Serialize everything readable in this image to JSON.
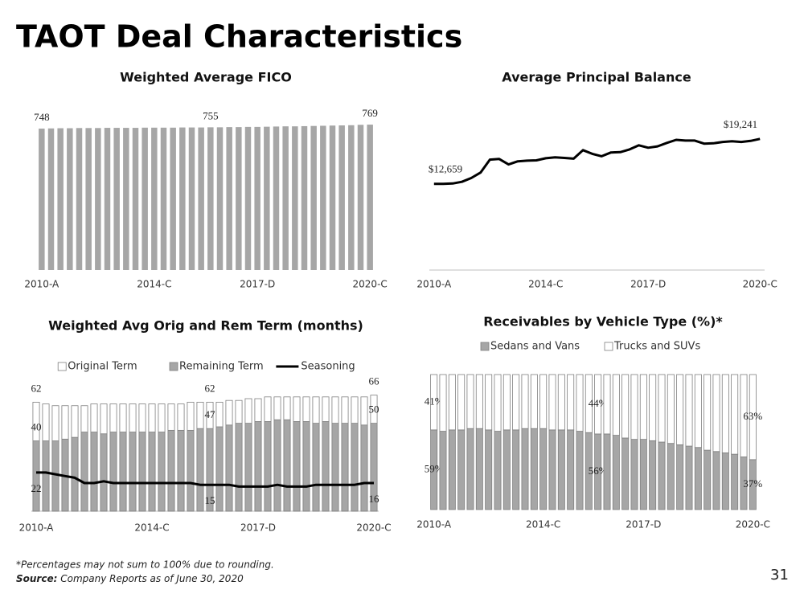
{
  "title": "TAOT Deal Characteristics",
  "chart_data": [
    {
      "type": "bar",
      "title": "Weighted Average FICO",
      "categories": [
        "2010-A",
        null,
        null,
        null,
        null,
        null,
        null,
        null,
        null,
        null,
        null,
        null,
        "2014-C",
        null,
        null,
        null,
        null,
        null,
        null,
        null,
        null,
        null,
        null,
        "2017-D",
        null,
        null,
        null,
        null,
        null,
        null,
        null,
        null,
        null,
        null,
        null,
        "2020-C"
      ],
      "values": [
        748,
        749,
        750,
        750,
        751,
        751,
        751,
        752,
        752,
        752,
        752,
        753,
        753,
        753,
        753,
        754,
        754,
        754,
        755,
        755,
        756,
        756,
        757,
        757,
        758,
        759,
        760,
        760,
        761,
        762,
        763,
        764,
        765,
        766,
        768,
        769
      ],
      "labeled": [
        0,
        18,
        35
      ],
      "color": "#a6a6a6",
      "ylim": [
        0,
        850
      ]
    },
    {
      "type": "line",
      "title": "Average Principal Balance",
      "categories": [
        "2010-A",
        null,
        null,
        null,
        null,
        null,
        null,
        null,
        null,
        null,
        null,
        null,
        "2014-C",
        null,
        null,
        null,
        null,
        null,
        null,
        null,
        null,
        null,
        null,
        "2017-D",
        null,
        null,
        null,
        null,
        null,
        null,
        null,
        null,
        null,
        null,
        null,
        "2020-C"
      ],
      "values": [
        12659,
        12650,
        12700,
        12950,
        13500,
        14300,
        16200,
        16300,
        15500,
        15950,
        16050,
        16100,
        16400,
        16550,
        16450,
        16350,
        17600,
        17050,
        16700,
        17250,
        17300,
        17700,
        18300,
        17950,
        18150,
        18650,
        19100,
        19000,
        19000,
        18550,
        18600,
        18800,
        18900,
        18800,
        18950,
        19241
      ],
      "value_labels": [
        "$12,659",
        null,
        null,
        null,
        null,
        null,
        null,
        null,
        null,
        null,
        null,
        null,
        null,
        null,
        null,
        null,
        null,
        null,
        null,
        null,
        null,
        null,
        null,
        null,
        null,
        null,
        null,
        null,
        null,
        null,
        null,
        null,
        null,
        null,
        null,
        "$19,241"
      ],
      "color": "#000000",
      "ylim": [
        0,
        25000
      ]
    },
    {
      "type": "bar_line",
      "title": "Weighted Avg Orig and Rem Term (months)",
      "categories": [
        "2010-A",
        null,
        null,
        null,
        null,
        null,
        null,
        null,
        null,
        null,
        null,
        null,
        "2014-C",
        null,
        null,
        null,
        null,
        null,
        null,
        null,
        null,
        null,
        null,
        "2017-D",
        null,
        null,
        null,
        null,
        null,
        null,
        null,
        null,
        null,
        null,
        null,
        "2020-C"
      ],
      "series": [
        {
          "name": "Original Term",
          "kind": "bar",
          "color": "#ffffff",
          "labeled": [
            0,
            18,
            35
          ],
          "values": [
            62,
            61,
            60,
            60,
            60,
            60,
            61,
            61,
            61,
            61,
            61,
            61,
            61,
            61,
            61,
            61,
            62,
            62,
            62,
            62,
            63,
            63,
            64,
            64,
            65,
            65,
            65,
            65,
            65,
            65,
            65,
            65,
            65,
            65,
            65,
            66
          ]
        },
        {
          "name": "Remaining Term",
          "kind": "bar",
          "color": "#a6a6a6",
          "labeled": [
            0,
            18,
            35
          ],
          "values": [
            40,
            40,
            40,
            41,
            42,
            45,
            45,
            44,
            45,
            45,
            45,
            45,
            45,
            45,
            46,
            46,
            46,
            47,
            47,
            48,
            49,
            50,
            50,
            51,
            51,
            52,
            52,
            51,
            51,
            50,
            51,
            50,
            50,
            50,
            49,
            50
          ]
        },
        {
          "name": "Seasoning",
          "kind": "line",
          "color": "#000000",
          "labeled": [
            0,
            18,
            35
          ],
          "values": [
            22,
            22,
            21,
            20,
            19,
            16,
            16,
            17,
            16,
            16,
            16,
            16,
            16,
            16,
            16,
            16,
            16,
            15,
            15,
            15,
            15,
            14,
            14,
            14,
            14,
            15,
            14,
            14,
            14,
            15,
            15,
            15,
            15,
            15,
            16,
            16
          ]
        }
      ],
      "ylim": [
        0,
        80
      ],
      "legend": "top"
    },
    {
      "type": "stacked_bar",
      "title": "Receivables by Vehicle Type (%)*",
      "categories": [
        "2010-A",
        null,
        null,
        null,
        null,
        null,
        null,
        null,
        null,
        null,
        null,
        null,
        "2014-C",
        null,
        null,
        null,
        null,
        null,
        null,
        null,
        null,
        null,
        null,
        "2017-D",
        null,
        null,
        null,
        null,
        null,
        null,
        null,
        null,
        null,
        null,
        null,
        "2020-C"
      ],
      "series": [
        {
          "name": "Sedans and Vans",
          "color": "#a6a6a6",
          "values": [
            59,
            58,
            59,
            59,
            60,
            60,
            59,
            58,
            59,
            59,
            60,
            60,
            60,
            59,
            59,
            59,
            58,
            57,
            56,
            56,
            55,
            53,
            52,
            52,
            51,
            50,
            49,
            48,
            47,
            46,
            44,
            43,
            42,
            41,
            39,
            37
          ],
          "value_labels": [
            "59%",
            null,
            null,
            null,
            null,
            null,
            null,
            null,
            null,
            null,
            null,
            null,
            null,
            null,
            null,
            null,
            null,
            null,
            "56%",
            null,
            null,
            null,
            null,
            null,
            null,
            null,
            null,
            null,
            null,
            null,
            null,
            null,
            null,
            null,
            null,
            "37%"
          ]
        },
        {
          "name": "Trucks and SUVs",
          "color": "#ffffff",
          "values": [
            41,
            42,
            41,
            41,
            40,
            40,
            41,
            42,
            41,
            41,
            40,
            40,
            40,
            41,
            41,
            41,
            42,
            43,
            44,
            44,
            45,
            47,
            48,
            48,
            49,
            50,
            51,
            52,
            53,
            54,
            56,
            57,
            58,
            59,
            61,
            63
          ],
          "value_labels": [
            "41%",
            null,
            null,
            null,
            null,
            null,
            null,
            null,
            null,
            null,
            null,
            null,
            null,
            null,
            null,
            null,
            null,
            null,
            "44%",
            null,
            null,
            null,
            null,
            null,
            null,
            null,
            null,
            null,
            null,
            null,
            null,
            null,
            null,
            null,
            null,
            "63%"
          ]
        }
      ],
      "ylim": [
        0,
        100
      ],
      "legend": "top"
    }
  ],
  "footnote": "*Percentages may not sum to 100% due to rounding.",
  "source_label": "Source:",
  "source": "Company Reports as of June 30, 2020",
  "page_number": "31"
}
